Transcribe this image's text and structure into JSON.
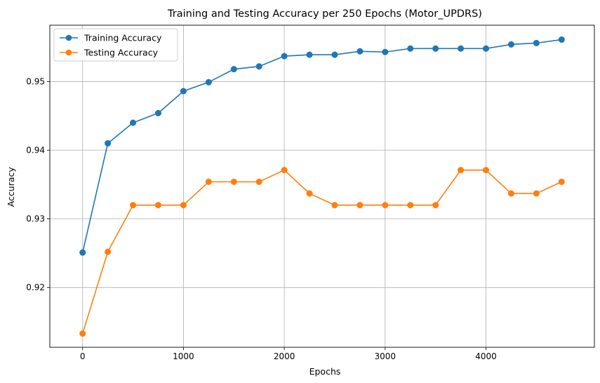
{
  "chart_data": {
    "type": "line",
    "title": "Training and Testing Accuracy per 250 Epochs (Motor_UPDRS)",
    "xlabel": "Epochs",
    "ylabel": "Accuracy",
    "xlim": [
      -325,
      5075
    ],
    "ylim": [
      0.9113,
      0.9582
    ],
    "xticks": [
      0,
      1000,
      2000,
      3000,
      4000
    ],
    "xtick_labels": [
      "0",
      "1000",
      "2000",
      "3000",
      "4000"
    ],
    "yticks": [
      0.92,
      0.93,
      0.94,
      0.95
    ],
    "ytick_labels": [
      "0.92",
      "0.93",
      "0.94",
      "0.95"
    ],
    "grid": true,
    "legend_position": "top-left",
    "x": [
      0,
      250,
      500,
      750,
      1000,
      1250,
      1500,
      1750,
      2000,
      2250,
      2500,
      2750,
      3000,
      3250,
      3500,
      3750,
      4000,
      4250,
      4500,
      4750
    ],
    "series": [
      {
        "name": "Training Accuracy",
        "color": "#1f77b4",
        "values": [
          0.9251,
          0.941,
          0.944,
          0.9454,
          0.9486,
          0.9499,
          0.9518,
          0.9522,
          0.9537,
          0.9539,
          0.9539,
          0.9544,
          0.9543,
          0.9548,
          0.9548,
          0.9548,
          0.9548,
          0.9554,
          0.9556,
          0.9561
        ]
      },
      {
        "name": "Testing Accuracy",
        "color": "#ff7f0e",
        "values": [
          0.9133,
          0.9252,
          0.932,
          0.932,
          0.932,
          0.9354,
          0.9354,
          0.9354,
          0.9371,
          0.9337,
          0.932,
          0.932,
          0.932,
          0.932,
          0.932,
          0.9371,
          0.9371,
          0.9337,
          0.9337,
          0.9354
        ]
      }
    ]
  }
}
